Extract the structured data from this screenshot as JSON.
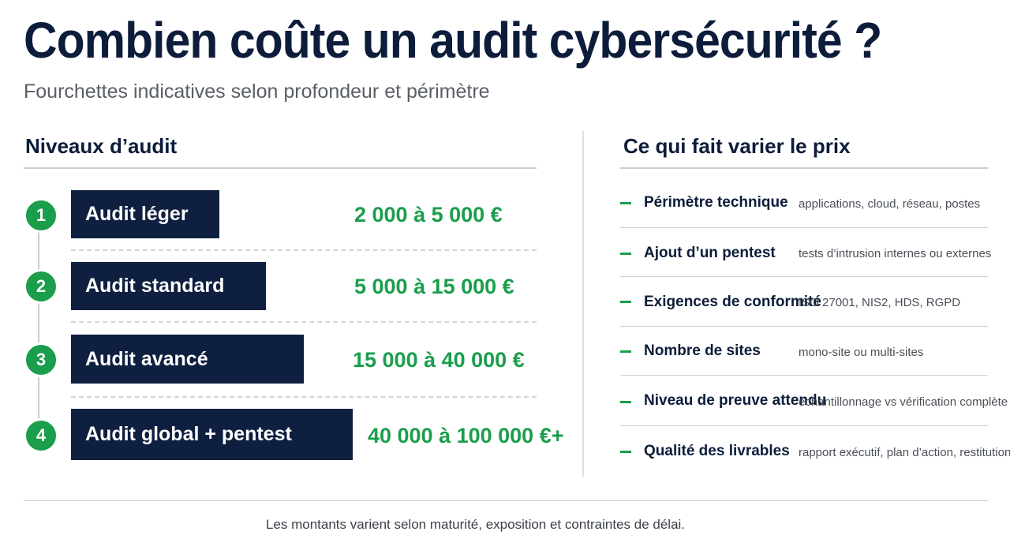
{
  "title": "Combien coûte un audit cybersécurité ?",
  "subtitle": "Fourchettes indicatives selon profondeur et périmètre",
  "levels": {
    "heading": "Niveaux d’audit",
    "items": [
      {
        "number": "1",
        "label": "Audit léger",
        "price": "2 000 à 5 000 €"
      },
      {
        "number": "2",
        "label": "Audit standard",
        "price": "5 000 à 15 000 €"
      },
      {
        "number": "3",
        "label": "Audit avancé",
        "price": "15 000 à 40 000 €"
      },
      {
        "number": "4",
        "label": "Audit global + pentest",
        "price": "40 000 à 100 000 €+"
      }
    ]
  },
  "factors": {
    "heading": "Ce qui fait varier le prix",
    "items": [
      {
        "name": "Périmètre technique",
        "desc": "applications, cloud, réseau, postes"
      },
      {
        "name": "Ajout d’un pentest",
        "desc": "tests d’intrusion internes ou externes"
      },
      {
        "name": "Exigences de conformité",
        "desc": "ISO 27001, NIS2, HDS, RGPD"
      },
      {
        "name": "Nombre de sites",
        "desc": "mono-site ou multi-sites"
      },
      {
        "name": "Niveau de preuve attendu",
        "desc": "échantillonnage vs vérification complète"
      },
      {
        "name": "Qualité des livrables",
        "desc": "rapport exécutif, plan d’action, restitution"
      }
    ]
  },
  "footer": "Les montants varient selon maturité, exposition et contraintes de délai.",
  "colors": {
    "navy": "#0f1f40",
    "green": "#1a9e4b",
    "grey_text": "#5a5f66"
  }
}
